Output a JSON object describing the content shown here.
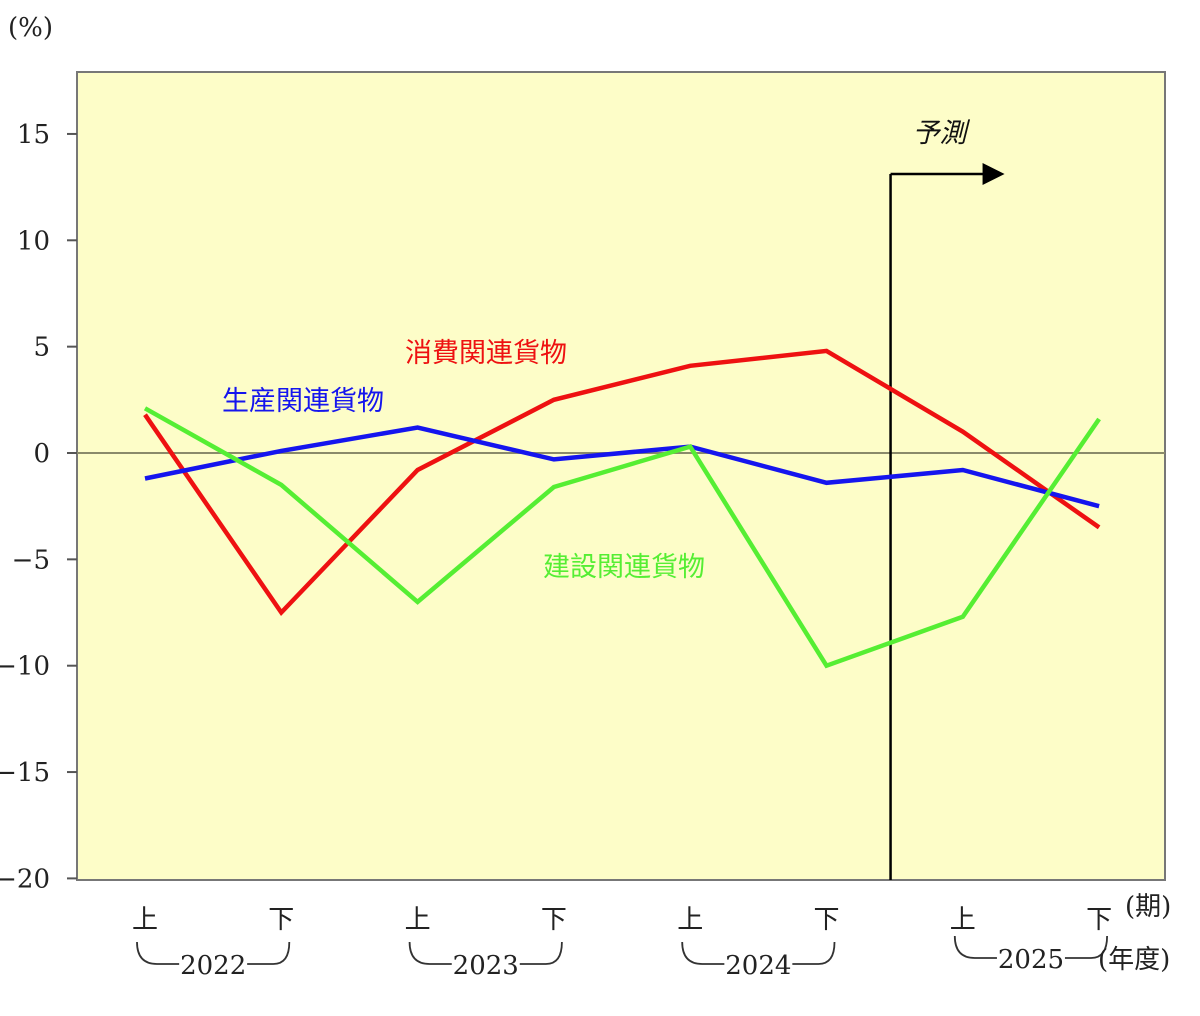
{
  "chart_data": {
    "type": "line",
    "y_unit": "(%)",
    "ylim": [
      -20,
      18
    ],
    "y_ticks": [
      15,
      10,
      5,
      0,
      -5,
      -10,
      -15,
      -20
    ],
    "y_tick_labels": [
      "15",
      "10",
      "5",
      "0",
      "−5",
      "−10",
      "−15",
      "−20"
    ],
    "categories": [
      "上",
      "下",
      "上",
      "下",
      "上",
      "下",
      "上",
      "下"
    ],
    "x_period_label": "(期)",
    "year_groups": [
      "2022",
      "2023",
      "2024",
      "2025"
    ],
    "x_year_label": "(年度)",
    "forecast_label": "予測",
    "forecast_start_after_index": 5,
    "background_color": "#FDFDC8",
    "series": [
      {
        "name": "消費関連貨物",
        "color": "#EE1111",
        "values": [
          1.8,
          -7.5,
          -0.8,
          2.5,
          4.1,
          4.8,
          1.0,
          -3.5
        ]
      },
      {
        "name": "生産関連貨物",
        "color": "#1515EE",
        "values": [
          -1.2,
          0.1,
          1.2,
          -0.3,
          0.3,
          -1.4,
          -0.8,
          -2.5
        ]
      },
      {
        "name": "建設関連貨物",
        "color": "#55EE33",
        "values": [
          2.1,
          -1.5,
          -7.0,
          -1.6,
          0.3,
          -10.0,
          -7.7,
          1.6
        ]
      }
    ]
  }
}
